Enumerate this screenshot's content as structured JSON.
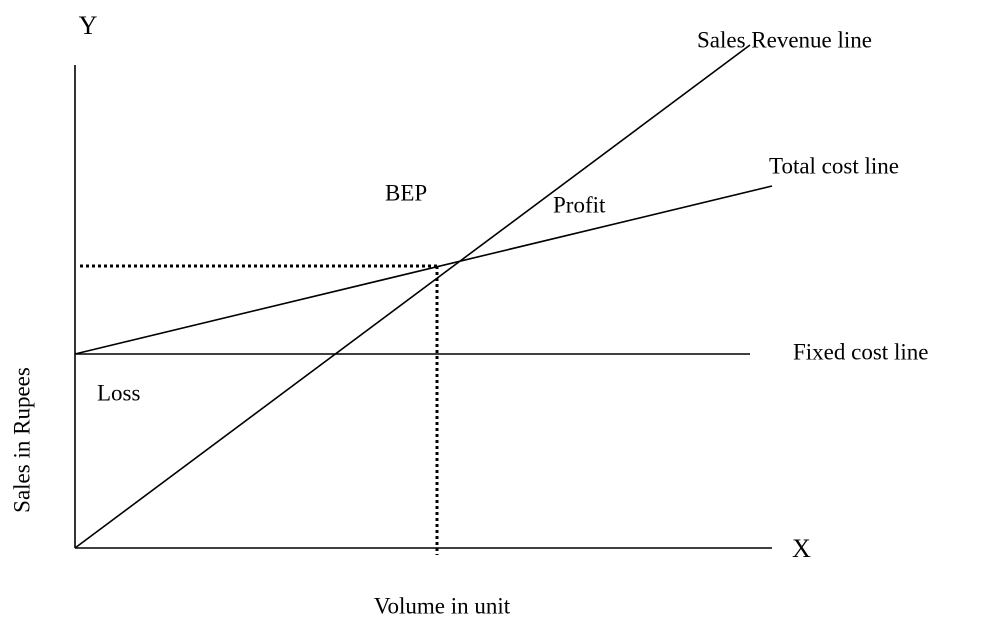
{
  "axes": {
    "y_label": "Y",
    "x_label": "X",
    "y_title": "Sales in Rupees",
    "x_title": "Volume in unit"
  },
  "lines": {
    "sales_revenue": "Sales Revenue line",
    "total_cost": "Total cost line",
    "fixed_cost": "Fixed cost line"
  },
  "regions": {
    "bep": "BEP",
    "profit": "Profit",
    "loss": "Loss"
  }
}
